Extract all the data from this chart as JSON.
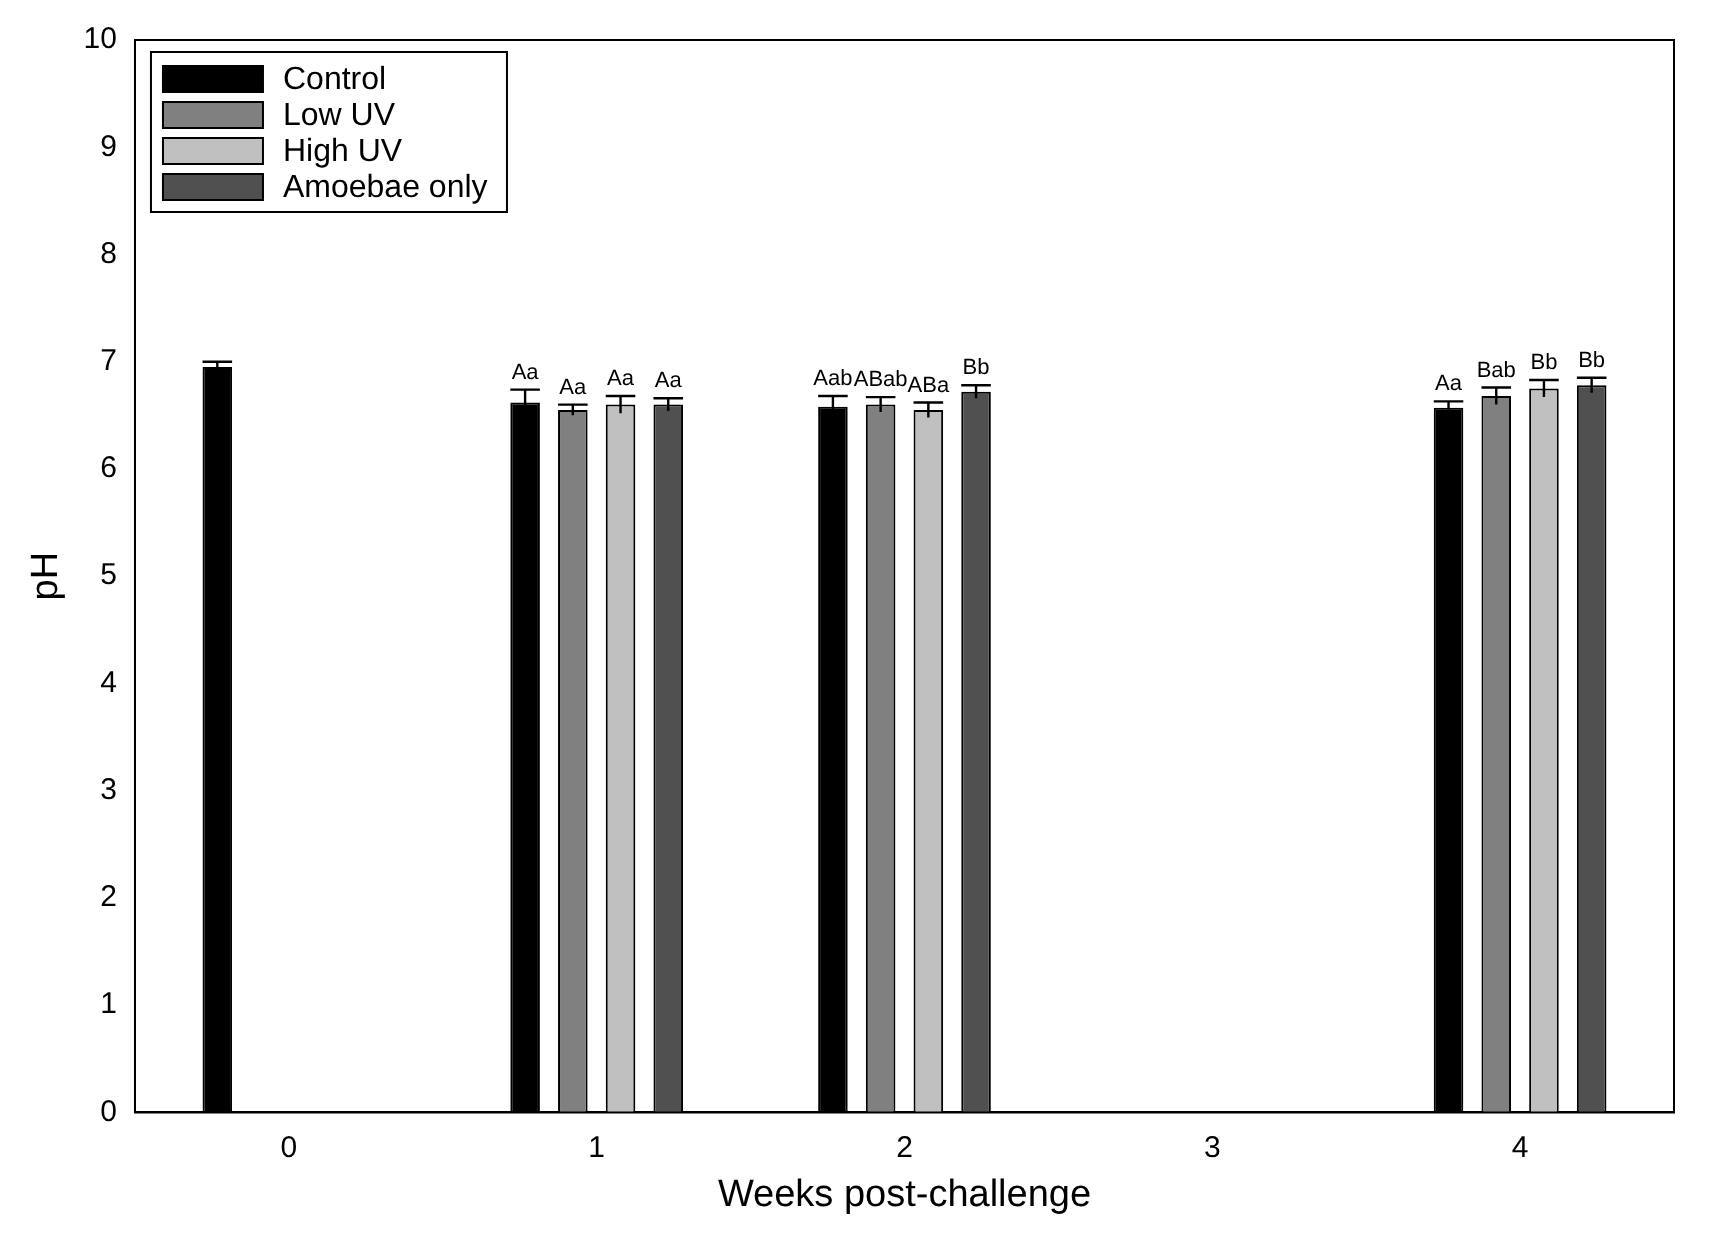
{
  "chart_data": {
    "type": "bar",
    "xlabel": "Weeks post-challenge",
    "ylabel": "pH",
    "categories": [
      "0",
      "1",
      "2",
      "3",
      "4"
    ],
    "series": [
      {
        "name": "Control",
        "color": "#000000",
        "values": [
          6.95,
          6.62,
          6.58,
          null,
          6.57
        ],
        "errors": [
          0.05,
          0.12,
          0.1,
          null,
          0.06
        ],
        "value_labels": [
          null,
          "Aa",
          "Aab",
          null,
          "Aa"
        ]
      },
      {
        "name": "Low UV",
        "color": "#808080",
        "values": [
          null,
          6.55,
          6.6,
          null,
          6.68
        ],
        "errors": [
          null,
          0.05,
          0.07,
          null,
          0.08
        ],
        "value_labels": [
          null,
          "Aa",
          "ABab",
          null,
          "Bab"
        ]
      },
      {
        "name": "High UV",
        "color": "#c0c0c0",
        "values": [
          null,
          6.6,
          6.55,
          null,
          6.75
        ],
        "errors": [
          null,
          0.08,
          0.07,
          null,
          0.08
        ],
        "value_labels": [
          null,
          "Aa",
          "ABa",
          null,
          "Bb"
        ]
      },
      {
        "name": "Amoebae only",
        "color": "#505050",
        "values": [
          null,
          6.6,
          6.72,
          null,
          6.78
        ],
        "errors": [
          null,
          0.06,
          0.06,
          null,
          0.07
        ],
        "value_labels": [
          null,
          "Aa",
          "Bb",
          null,
          "Bb"
        ]
      }
    ],
    "ylim": [
      0,
      10
    ],
    "yticks": [
      0,
      1,
      2,
      3,
      4,
      5,
      6,
      7,
      8,
      9,
      10
    ],
    "grid": false,
    "legend": "top left"
  }
}
